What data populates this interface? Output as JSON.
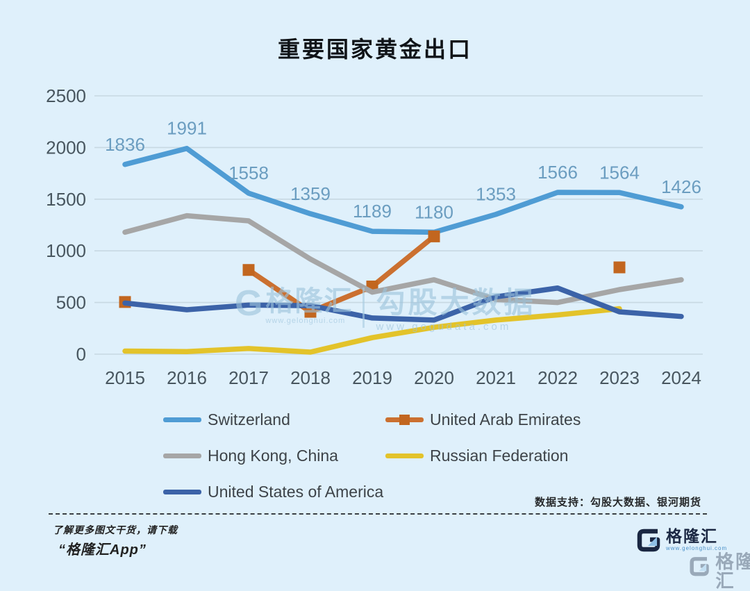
{
  "title": "重要国家黄金出口",
  "watermark": {
    "gmark": "G",
    "brand": "格隆汇",
    "brand_url": "www.gelonghui.com",
    "data_brand": "勾股大数据",
    "data_url": "www.gogudata.com"
  },
  "footer": {
    "data_support": "数据支持：勾股大数据、银河期货",
    "promo_line1": "了解更多图文干货，请下载",
    "promo_line2": "“格隆汇App”",
    "logo_text": "格隆汇",
    "logo_url": "www.gelonghui.com"
  },
  "colors": {
    "background": "#dff0fb",
    "gridline": "#c7d8e2",
    "axis_text": "#48565f",
    "data_label": "#6b9dc0",
    "switzerland": "#4f9cd4",
    "uae_line": "#cb7030",
    "uae_marker": "#c2661f",
    "hongkong": "#a6a6a6",
    "russia": "#e3c32a",
    "usa": "#3c63a8"
  },
  "chart_data": {
    "type": "line",
    "title": "重要国家黄金出口",
    "x": [
      2015,
      2016,
      2017,
      2018,
      2019,
      2020,
      2021,
      2022,
      2023,
      2024
    ],
    "xlabel": "",
    "ylabel": "",
    "ylim": [
      0,
      2500
    ],
    "yticks": [
      0,
      500,
      1000,
      1500,
      2000,
      2500
    ],
    "grid": true,
    "legend_position": "bottom",
    "series": [
      {
        "name": "Switzerland",
        "color": "#4f9cd4",
        "marker": "none",
        "data_labels": true,
        "values": [
          1836,
          1991,
          1558,
          1359,
          1189,
          1180,
          1353,
          1566,
          1564,
          1426
        ]
      },
      {
        "name": "United Arab Emirates",
        "color": "#cb7030",
        "marker": "square",
        "marker_color": "#c2661f",
        "data_labels": false,
        "values": [
          505,
          null,
          815,
          410,
          655,
          1140,
          null,
          null,
          840,
          null
        ]
      },
      {
        "name": "Hong Kong, China",
        "color": "#a6a6a6",
        "marker": "none",
        "data_labels": false,
        "values": [
          1180,
          1340,
          1290,
          920,
          600,
          720,
          530,
          500,
          625,
          720
        ]
      },
      {
        "name": "Russian Federation",
        "color": "#e3c32a",
        "marker": "none",
        "data_labels": false,
        "values": [
          30,
          25,
          55,
          20,
          160,
          260,
          330,
          380,
          440,
          null
        ]
      },
      {
        "name": "United States of America",
        "color": "#3c63a8",
        "marker": "none",
        "data_labels": false,
        "values": [
          495,
          430,
          475,
          470,
          350,
          330,
          555,
          640,
          410,
          365
        ]
      }
    ],
    "legend_order_grid": [
      0,
      1,
      2,
      3,
      4
    ]
  }
}
